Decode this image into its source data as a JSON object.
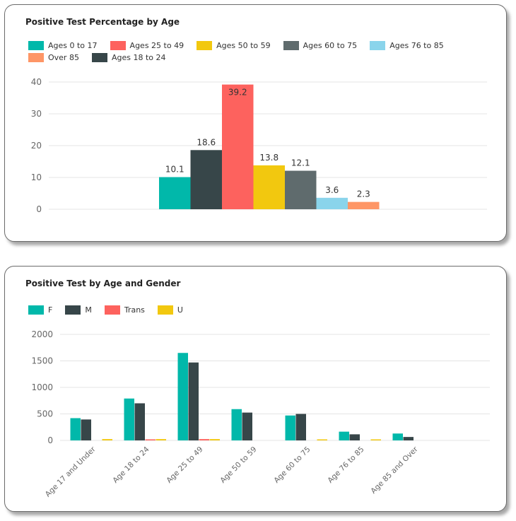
{
  "colors": {
    "teal": "#01B8AA",
    "charcoal": "#374649",
    "red": "#FD625E",
    "yellow": "#F2C80F",
    "gray": "#5F6B6D",
    "lightblue": "#8AD4EB",
    "orange": "#FE9666"
  },
  "chart_data": [
    {
      "type": "bar",
      "title": "Positive Test Percentage by Age",
      "xlabel": "",
      "ylabel": "",
      "ylim": [
        0,
        40
      ],
      "yticks": [
        "0",
        "10",
        "20",
        "30",
        "40"
      ],
      "grid": true,
      "legend_position": "top-left",
      "categories": [
        "Ages 0 to 17",
        "Ages 18 to 24",
        "Ages 25 to 49",
        "Ages 50 to 59",
        "Ages 60 to 75",
        "Ages 76 to 85",
        "Over 85"
      ],
      "legend": [
        {
          "name": "Ages 0 to 17",
          "color": "#01B8AA"
        },
        {
          "name": "Ages 25 to 49",
          "color": "#FD625E"
        },
        {
          "name": "Ages 50 to 59",
          "color": "#F2C80F"
        },
        {
          "name": "Ages 60 to 75",
          "color": "#5F6B6D"
        },
        {
          "name": "Ages 76 to 85",
          "color": "#8AD4EB"
        },
        {
          "name": "Over 85",
          "color": "#FE9666"
        },
        {
          "name": "Ages 18 to 24",
          "color": "#374649"
        }
      ],
      "bars": [
        {
          "category": "Ages 0 to 17",
          "value": 10.1,
          "label": "10.1",
          "color": "#01B8AA"
        },
        {
          "category": "Ages 18 to 24",
          "value": 18.6,
          "label": "18.6",
          "color": "#374649"
        },
        {
          "category": "Ages 25 to 49",
          "value": 39.2,
          "label": "39.2",
          "color": "#FD625E"
        },
        {
          "category": "Ages 50 to 59",
          "value": 13.8,
          "label": "13.8",
          "color": "#F2C80F"
        },
        {
          "category": "Ages 60 to 75",
          "value": 12.1,
          "label": "12.1",
          "color": "#5F6B6D"
        },
        {
          "category": "Ages 76 to 85",
          "value": 3.6,
          "label": "3.6",
          "color": "#8AD4EB"
        },
        {
          "category": "Over 85",
          "value": 2.3,
          "label": "2.3",
          "color": "#FE9666"
        }
      ]
    },
    {
      "type": "bar",
      "title": "Positive Test by Age and Gender",
      "xlabel": "",
      "ylabel": "",
      "ylim": [
        0,
        2000
      ],
      "yticks": [
        "0",
        "500",
        "1000",
        "1500",
        "2000"
      ],
      "grid": true,
      "legend_position": "top-left",
      "categories": [
        "Age 17 and Under",
        "Age 18 to 24",
        "Age 25 to 49",
        "Age 50 to 59",
        "Age 60 to 75",
        "Age 76 to 85",
        "Age 85 and Over"
      ],
      "series": [
        {
          "name": "F",
          "color": "#01B8AA",
          "values": [
            420,
            790,
            1650,
            590,
            470,
            165,
            130
          ]
        },
        {
          "name": "M",
          "color": "#374649",
          "values": [
            395,
            700,
            1470,
            525,
            500,
            115,
            65
          ]
        },
        {
          "name": "Trans",
          "color": "#FD625E",
          "values": [
            0,
            20,
            25,
            0,
            0,
            0,
            0
          ]
        },
        {
          "name": "U",
          "color": "#F2C80F",
          "values": [
            25,
            25,
            25,
            0,
            20,
            20,
            0
          ]
        }
      ]
    }
  ]
}
